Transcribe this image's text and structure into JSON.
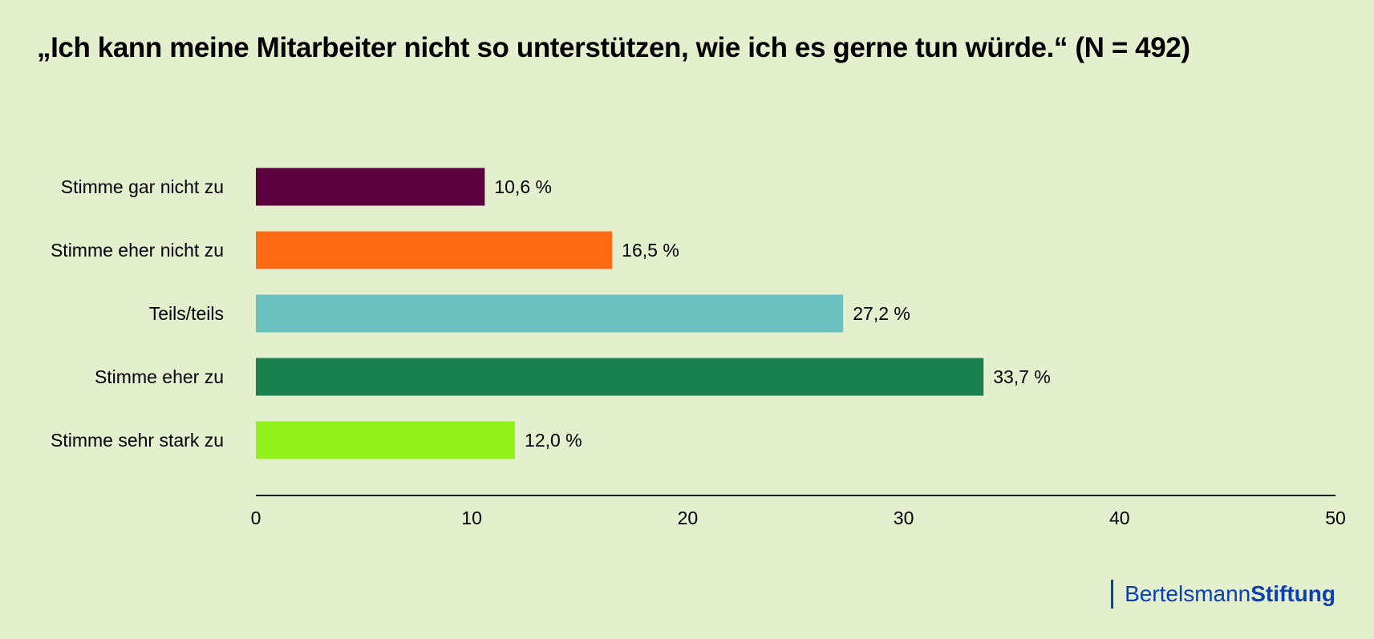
{
  "chart_data": {
    "type": "bar",
    "orientation": "horizontal",
    "title": "„Ich kann meine Mitarbeiter nicht so unterstützen, wie ich es gerne tun würde.“ (N = 492)",
    "categories": [
      "Stimme gar nicht zu",
      "Stimme eher nicht zu",
      "Teils/teils",
      "Stimme eher zu",
      "Stimme sehr stark zu"
    ],
    "values": [
      10.6,
      16.5,
      27.2,
      33.7,
      12.0
    ],
    "value_labels": [
      "10,6 %",
      "16,5 %",
      "27,2 %",
      "33,7 %",
      "12,0 %"
    ],
    "colors": [
      "#5c0040",
      "#ff6a12",
      "#6bc1c0",
      "#1b804f",
      "#93f11a"
    ],
    "xlabel": "",
    "ylabel": "",
    "xlim": [
      0,
      50
    ],
    "xticks": [
      0,
      10,
      20,
      30,
      40,
      50
    ],
    "xtick_labels": [
      "0",
      "10",
      "20",
      "30",
      "40",
      "50"
    ],
    "grid": false,
    "legend": "none",
    "unit": "%"
  },
  "branding": {
    "logo_regular": "Bertelsmann",
    "logo_bold": "Stiftung",
    "logo_color": "#0b3fb3"
  },
  "background_color": "#e4f0cd"
}
